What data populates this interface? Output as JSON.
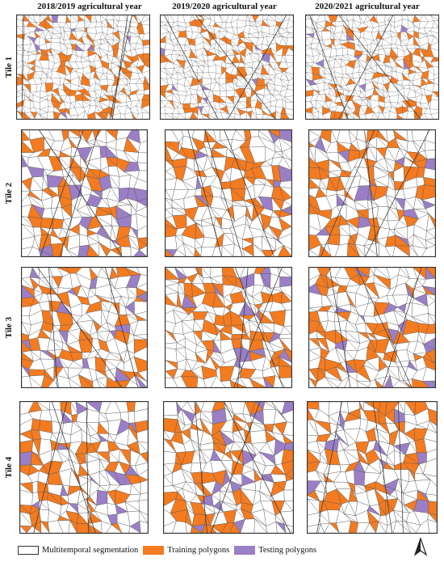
{
  "columns": [
    "2018/2019 agricultural year",
    "2019/2020 agricultural year",
    "2020/2021 agricultural year"
  ],
  "rows": [
    "Tile 1",
    "Tile 2",
    "Tile 3",
    "Tile 4"
  ],
  "legend": {
    "segmentation": "Multitemporal segmentation",
    "training": "Training polygons",
    "testing": "Testing polygons"
  },
  "colors": {
    "training": "#f47b20",
    "testing": "#9b7fc6",
    "segmentation_stroke": "#555555",
    "background": "#ffffff"
  },
  "icons": {
    "north_arrow": "north-arrow-icon"
  }
}
